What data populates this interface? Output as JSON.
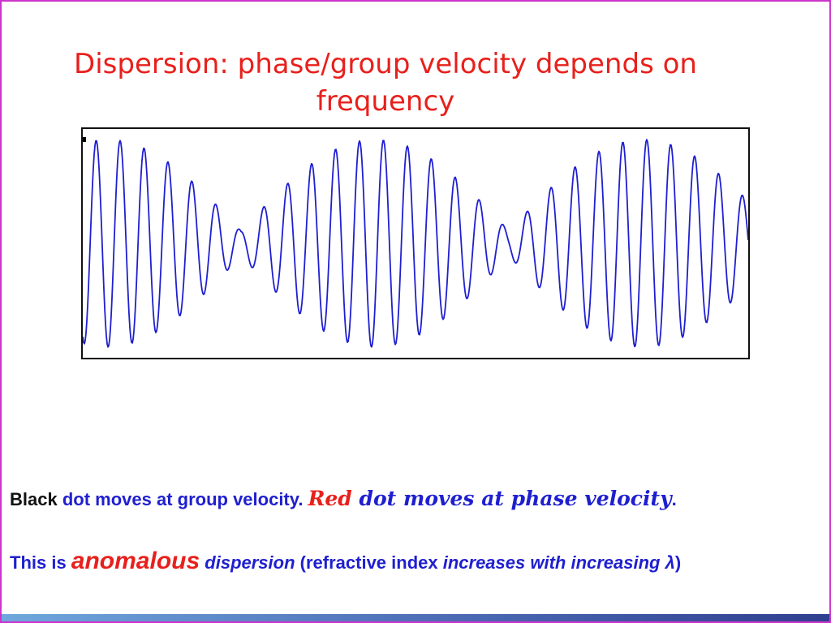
{
  "slide": {
    "title_line1": "Dispersion: phase/group velocity depends on",
    "title_line2": "frequency"
  },
  "figure": {
    "wave_color": "#1f1fd0",
    "marker_color": "#000000"
  },
  "caption1": {
    "black_word": "Black",
    "part1": " dot moves at group velocity. ",
    "red_word": "Red",
    "part2": " dot moves at phase velocity",
    "period": "."
  },
  "caption2": {
    "prefix": "This is ",
    "anomalous": "anomalous",
    "dispersion": " dispersion",
    "paren_open": " (refractive index ",
    "increases": "increases with increasing ",
    "lambda": "λ",
    "paren_close": ")"
  },
  "colors": {
    "title": "#e8201c",
    "blue_text": "#1f1fd0",
    "frame": "#cc33cc"
  }
}
